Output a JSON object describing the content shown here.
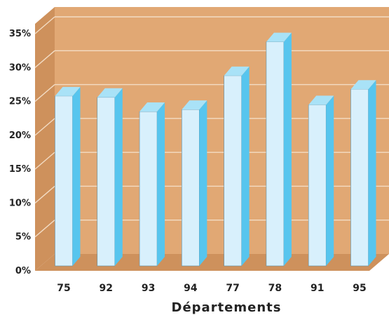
{
  "chart_data": {
    "type": "bar",
    "categories": [
      "75",
      "92",
      "93",
      "94",
      "77",
      "78",
      "91",
      "95"
    ],
    "values": [
      25.8,
      25.6,
      23.5,
      23.8,
      28.8,
      33.8,
      24.5,
      26.8
    ],
    "xlabel": "Départements",
    "ylabel": "",
    "ylim": [
      0,
      35
    ],
    "yticks": [
      0,
      5,
      10,
      15,
      20,
      25,
      30,
      35
    ],
    "ytick_labels": [
      "0%",
      "5%",
      "10%",
      "15%",
      "20%",
      "25%",
      "30%",
      "35%"
    ],
    "grid": true,
    "style": "3d"
  },
  "colors": {
    "wall": "#E1A874",
    "floor": "#CE915C",
    "grid": "#F3DCC4",
    "bar_front": "#D8F0FC",
    "bar_side": "#57C5EE",
    "bar_top": "#A9E2F7",
    "bar_edge": "#5A8FA8"
  }
}
